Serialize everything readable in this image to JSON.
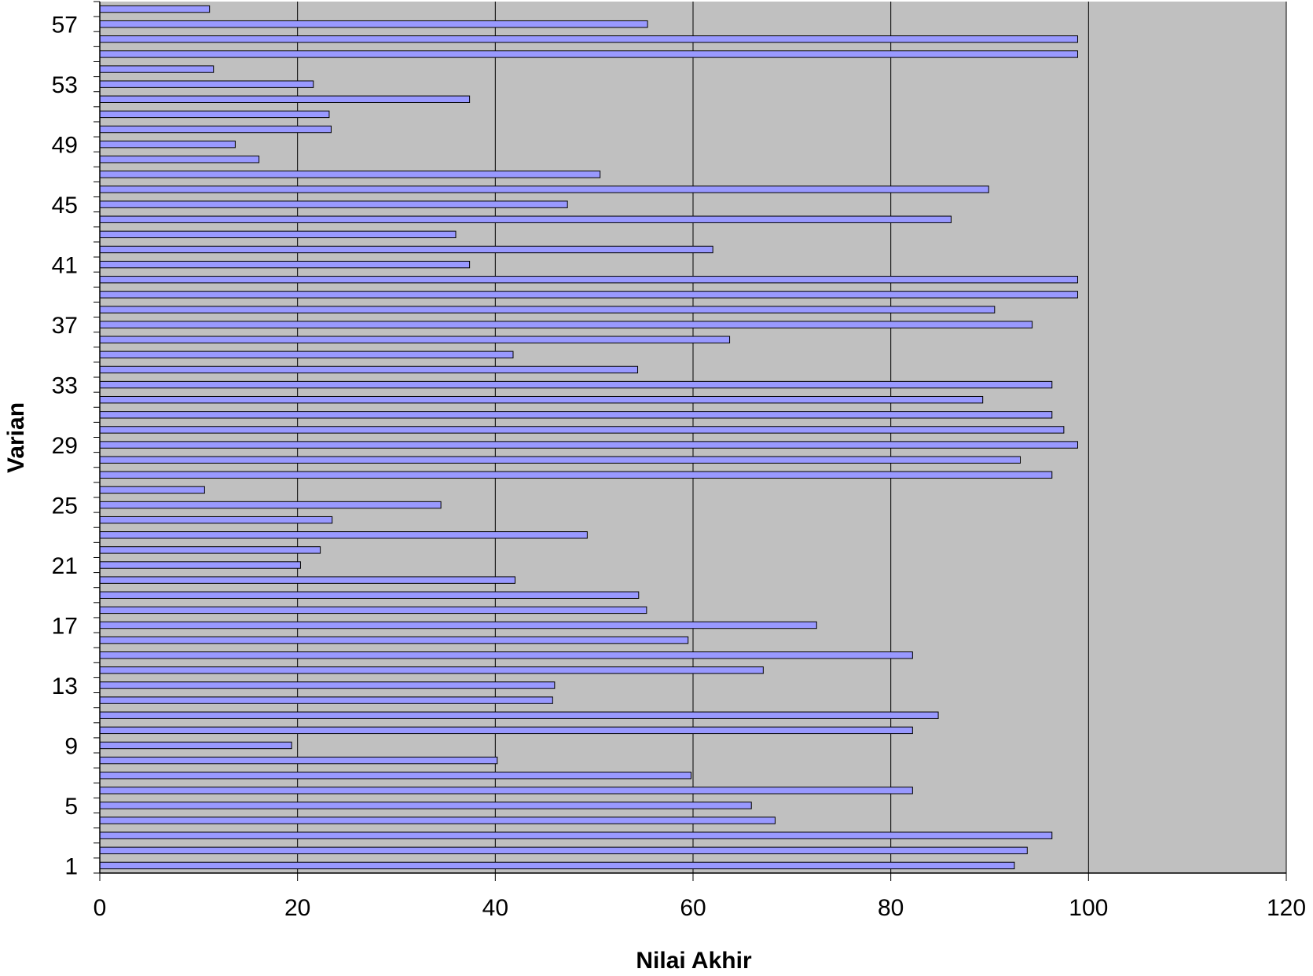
{
  "chart_data": {
    "type": "bar",
    "orientation": "horizontal",
    "title": "",
    "xlabel": "Nilai Akhir",
    "ylabel": "Varian",
    "xlim": [
      0,
      120
    ],
    "x_ticks": [
      0,
      20,
      40,
      60,
      80,
      100,
      120
    ],
    "y_tick_labels": [
      "1",
      "5",
      "9",
      "13",
      "17",
      "21",
      "25",
      "29",
      "33",
      "37",
      "41",
      "45",
      "49",
      "53",
      "57"
    ],
    "grid": "vertical lines at major x ticks",
    "legend": "none",
    "colors": {
      "bar_fill": "#9999ff",
      "bar_stroke": "#000000",
      "plot_background": "#c0c0c0",
      "gridline": "#000000"
    },
    "categories": [
      1,
      2,
      3,
      4,
      5,
      6,
      7,
      8,
      9,
      10,
      11,
      12,
      13,
      14,
      15,
      16,
      17,
      18,
      19,
      20,
      21,
      22,
      23,
      24,
      25,
      26,
      27,
      28,
      29,
      30,
      31,
      32,
      33,
      34,
      35,
      36,
      37,
      38,
      39,
      40,
      41,
      42,
      43,
      44,
      45,
      46,
      47,
      48,
      49,
      50,
      51,
      52,
      53,
      54,
      55,
      56,
      57,
      58
    ],
    "values": [
      92.5,
      93.8,
      96.3,
      68.3,
      65.9,
      82.2,
      59.8,
      40.2,
      19.4,
      82.2,
      84.8,
      45.8,
      46.0,
      67.1,
      82.2,
      59.5,
      72.5,
      55.3,
      54.5,
      42.0,
      20.3,
      22.3,
      49.3,
      23.5,
      34.5,
      10.6,
      96.3,
      93.1,
      98.9,
      97.5,
      96.3,
      89.3,
      96.3,
      54.4,
      41.8,
      63.7,
      94.3,
      90.5,
      98.9,
      98.9,
      37.4,
      62.0,
      36.0,
      86.1,
      47.3,
      89.9,
      50.6,
      16.1,
      13.7,
      23.4,
      23.2,
      37.4,
      21.6,
      11.5,
      98.9,
      98.9,
      55.4,
      11.1
    ]
  }
}
